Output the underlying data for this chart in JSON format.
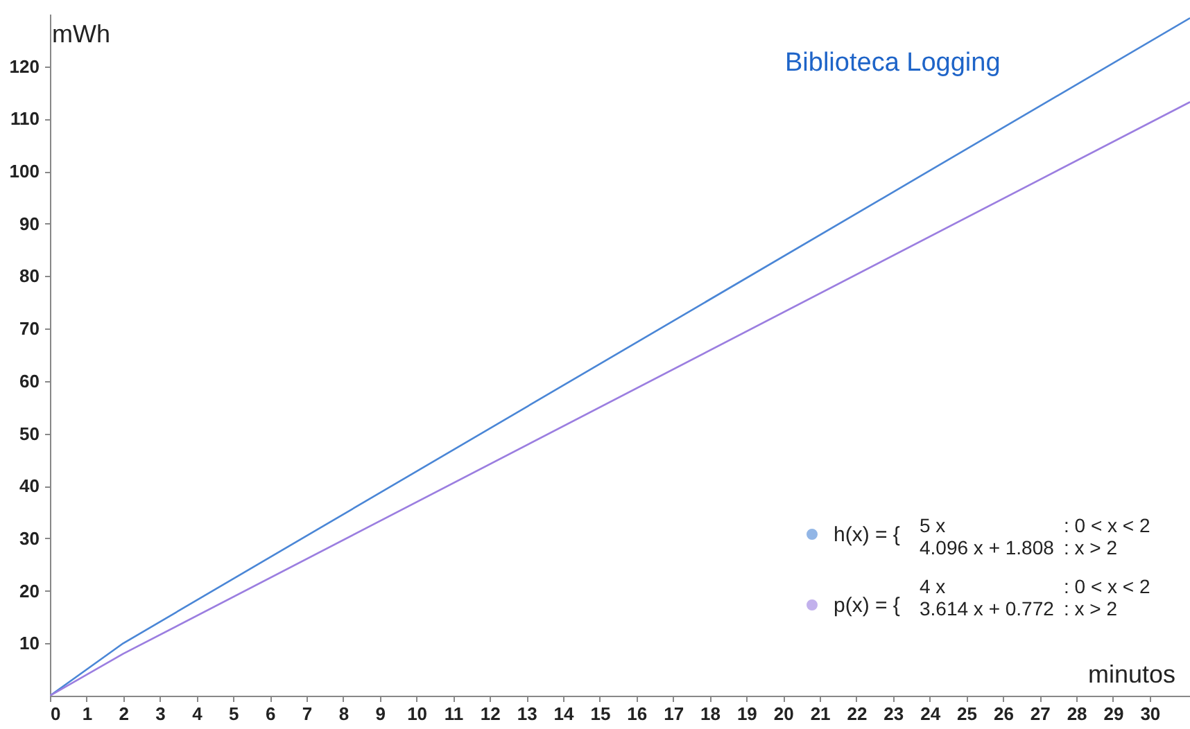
{
  "chart_data": {
    "type": "line",
    "title": "Biblioteca Logging",
    "xlabel": "minutos",
    "ylabel": "mWh",
    "xlim": [
      0,
      31.1
    ],
    "ylim": [
      0,
      130
    ],
    "xticks": [
      0,
      1,
      2,
      3,
      4,
      5,
      6,
      7,
      8,
      9,
      10,
      11,
      12,
      13,
      14,
      15,
      16,
      17,
      18,
      19,
      20,
      21,
      22,
      23,
      24,
      25,
      26,
      27,
      28,
      29,
      30
    ],
    "yticks": [
      10,
      20,
      30,
      40,
      50,
      60,
      70,
      80,
      90,
      100,
      110,
      120
    ],
    "grid": false,
    "legend": "bottom right",
    "series": [
      {
        "name": "h(x) = {",
        "color": "#4a86d6",
        "x": [
          0,
          2,
          31.1
        ],
        "values": [
          0,
          10,
          129.2
        ]
      },
      {
        "name": "p(x) = {",
        "color": "#9b7ee0",
        "x": [
          0,
          2,
          31.1
        ],
        "values": [
          0,
          8,
          113.2
        ]
      }
    ],
    "annotations": [
      "5 x",
      ": 0 < x < 2",
      "4.096 x + 1.808",
      ": x > 2",
      "4 x",
      ": 0 < x < 2",
      "3.614 x + 0.772",
      ": x > 2"
    ]
  }
}
